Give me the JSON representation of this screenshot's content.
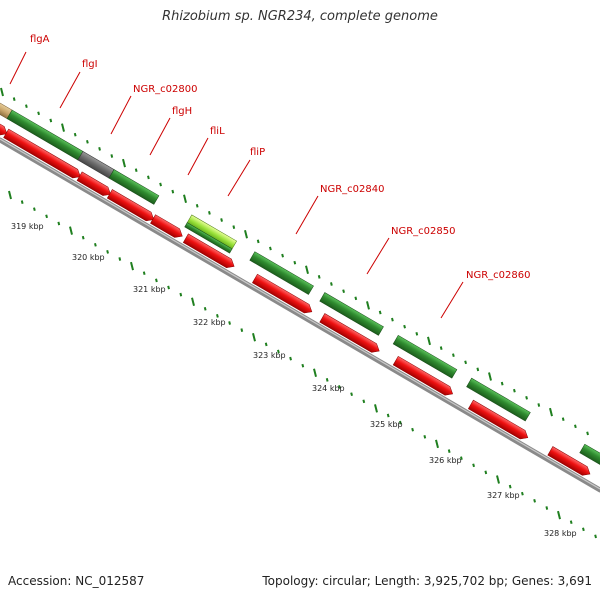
{
  "title": "Rhizobium sp. NGR234, complete genome",
  "footer": {
    "accession": "Accession: NC_012587",
    "summary": "Topology: circular; Length: 3,925,702 bp; Genes: 3,691"
  },
  "colors": {
    "label": "#cc0000",
    "forward_strand": "#2f8a2f",
    "forward_highlight": "#7fd62a",
    "forward_gray": "#6a6a6a",
    "forward_tan": "#c9a56a",
    "reverse_strand": "#ee1111",
    "backbone": "#8a8a8a",
    "tick": "#1f7f1f",
    "scale_text": "#222222"
  },
  "gene_labels": [
    {
      "name": "flgA"
    },
    {
      "name": "flgI"
    },
    {
      "name": "NGR_c02800"
    },
    {
      "name": "flgH"
    },
    {
      "name": "fliL"
    },
    {
      "name": "fliP"
    },
    {
      "name": "NGR_c02840"
    },
    {
      "name": "NGR_c02850"
    },
    {
      "name": "NGR_c02860"
    }
  ],
  "scale_labels": [
    "319 kbp",
    "320 kbp",
    "321 kbp",
    "322 kbp",
    "323 kbp",
    "324 kbp",
    "325 kbp",
    "326 kbp",
    "327 kbp",
    "328 kbp"
  ]
}
